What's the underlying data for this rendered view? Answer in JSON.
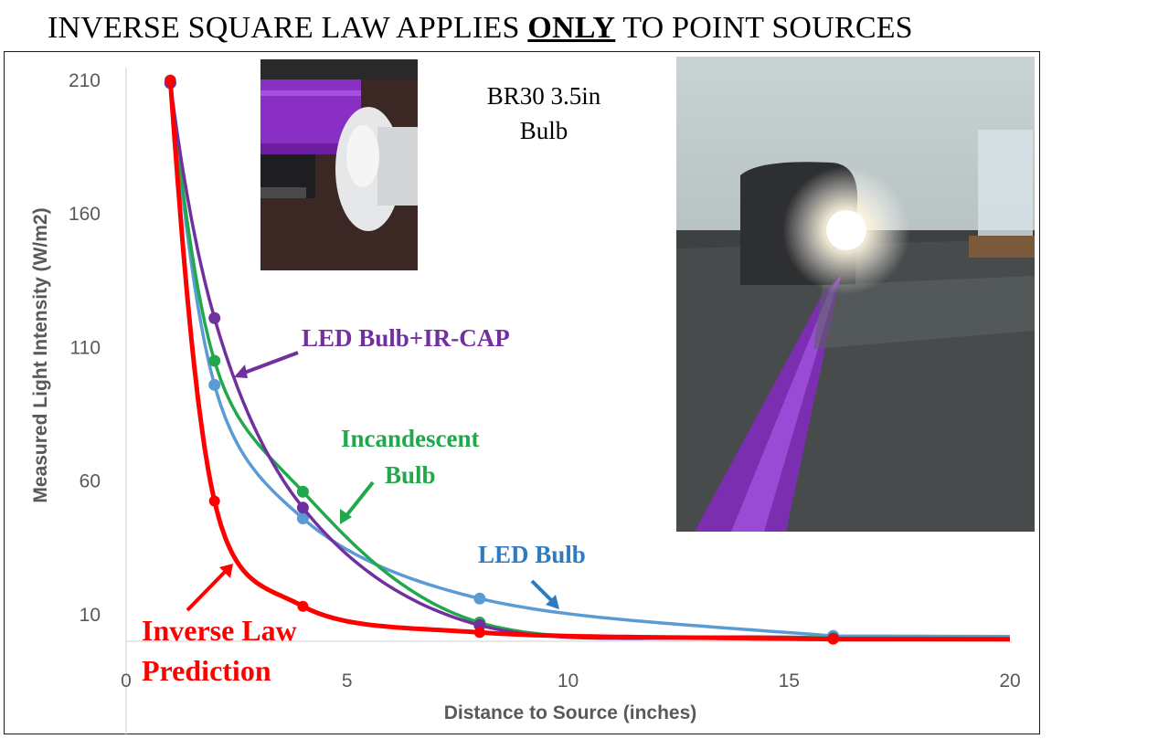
{
  "title": {
    "before": "INVERSE SQUARE LAW APPLIES ",
    "emph": "ONLY",
    "after": " TO POINT SOURCES"
  },
  "photo_caption": {
    "line1": "BR30 3.5in",
    "line2": "Bulb"
  },
  "colors": {
    "inverse": "#ff0000",
    "incandescent": "#21a84a",
    "led": "#5b9bd5",
    "led_ircap": "#7030a0",
    "axis_text": "#595959"
  },
  "chart_data": {
    "type": "line",
    "xlabel": "Distance to Source (inches)",
    "ylabel": "Measured Light Intensity (W/m2)",
    "xlim": [
      0,
      20
    ],
    "ylim": [
      0,
      210
    ],
    "xticks": [
      "0",
      "5",
      "10",
      "15",
      "20"
    ],
    "yticks": [
      "10",
      "60",
      "110",
      "160",
      "210"
    ],
    "x_tick_values": [
      0,
      5,
      10,
      15,
      20
    ],
    "y_tick_values": [
      10,
      60,
      110,
      160,
      210
    ],
    "grid": false,
    "series": [
      {
        "key": "inverse",
        "name": "Inverse Law Prediction",
        "label_lines": [
          "Inverse Law",
          "Prediction"
        ],
        "x": [
          1,
          2,
          4,
          8,
          16
        ],
        "y": [
          210,
          52.5,
          13.1,
          3.3,
          0.8
        ]
      },
      {
        "key": "incandescent",
        "name": "Incandescent Bulb",
        "label_lines": [
          "Incandescent",
          "Bulb"
        ],
        "x": [
          1,
          2,
          4,
          8,
          16
        ],
        "y": [
          209,
          105,
          56,
          7,
          1.2
        ]
      },
      {
        "key": "led",
        "name": "LED Bulb",
        "label_lines": [
          "LED Bulb"
        ],
        "x": [
          1,
          2,
          4,
          8,
          16
        ],
        "y": [
          210,
          96,
          46,
          16,
          2
        ]
      },
      {
        "key": "led_ircap",
        "name": "LED Bulb+IR-CAP",
        "label_lines": [
          "LED Bulb+IR-CAP"
        ],
        "x": [
          1,
          2,
          4,
          8,
          16
        ],
        "y": [
          209,
          121,
          50,
          6,
          1
        ]
      }
    ]
  }
}
